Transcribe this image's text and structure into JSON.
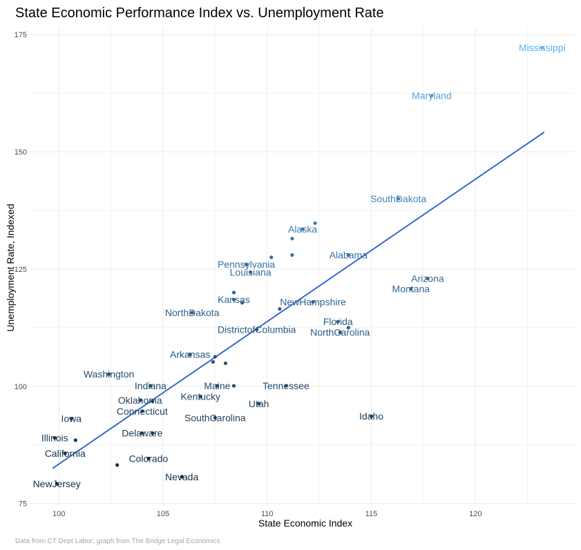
{
  "chart_data": {
    "type": "scatter",
    "title": "State Economic Performance Index vs. Unemployment Rate",
    "xlabel": "State Economic Index",
    "ylabel": "Unemployment Rate, Indexed",
    "caption": "Data from CT Dept Labor; graph from The Bridge Legal Economics",
    "xlim": [
      98.6,
      124.8
    ],
    "ylim": [
      74.5,
      176.5
    ],
    "x_ticks": [
      100,
      105,
      110,
      115,
      120
    ],
    "x_tick_labels": [
      "100",
      "105",
      "110",
      "115",
      "120"
    ],
    "y_ticks": [
      75,
      100,
      125,
      150,
      175
    ],
    "y_tick_labels": [
      "75",
      "100",
      "125",
      "150",
      "175"
    ],
    "grid": true,
    "legend": "none",
    "color_scale": {
      "low": "#132b43",
      "high": "#56b1f7",
      "variable": "unemployment"
    },
    "trend_line": {
      "color": "#3366cc",
      "x": [
        99.7,
        123.3
      ],
      "y": [
        82.5,
        154.2
      ]
    },
    "points": [
      {
        "label": "Mississippi",
        "x": 123.2,
        "y": 172.2
      },
      {
        "label": "Maryland",
        "x": 117.9,
        "y": 162.0
      },
      {
        "label": "South Dakota",
        "x": 116.3,
        "y": 140.0
      },
      {
        "label": "Alaska",
        "x": 111.7,
        "y": 133.5
      },
      {
        "label": "",
        "x": 112.3,
        "y": 134.8
      },
      {
        "label": "",
        "x": 111.2,
        "y": 131.5
      },
      {
        "label": "",
        "x": 111.2,
        "y": 128.0
      },
      {
        "label": "",
        "x": 110.2,
        "y": 127.5
      },
      {
        "label": "Alabama",
        "x": 113.9,
        "y": 128.0
      },
      {
        "label": "Pennsylvania",
        "x": 109.0,
        "y": 126.0
      },
      {
        "label": "Louisiana",
        "x": 109.2,
        "y": 124.3
      },
      {
        "label": "Arizona",
        "x": 117.7,
        "y": 123.0
      },
      {
        "label": "Montana",
        "x": 116.9,
        "y": 120.8
      },
      {
        "label": "",
        "x": 108.4,
        "y": 120.0
      },
      {
        "label": "Kansas",
        "x": 108.4,
        "y": 118.5
      },
      {
        "label": "",
        "x": 108.8,
        "y": 117.8
      },
      {
        "label": "New Hampshire",
        "x": 112.2,
        "y": 118.0
      },
      {
        "label": "",
        "x": 110.6,
        "y": 116.5
      },
      {
        "label": "North Dakota",
        "x": 106.4,
        "y": 115.7
      },
      {
        "label": "Florida",
        "x": 113.4,
        "y": 113.8
      },
      {
        "label": "",
        "x": 113.9,
        "y": 112.5
      },
      {
        "label": "North Carolina",
        "x": 113.5,
        "y": 111.5
      },
      {
        "label": "District of Columbia",
        "x": 109.5,
        "y": 112.1
      },
      {
        "label": "Arkansas",
        "x": 106.3,
        "y": 106.8
      },
      {
        "label": "",
        "x": 107.5,
        "y": 106.3
      },
      {
        "label": "",
        "x": 107.4,
        "y": 105.2
      },
      {
        "label": "",
        "x": 108.0,
        "y": 104.9
      },
      {
        "label": "Washington",
        "x": 102.4,
        "y": 102.6
      },
      {
        "label": "Indiana",
        "x": 104.4,
        "y": 100.1
      },
      {
        "label": "Maine",
        "x": 107.6,
        "y": 100.1
      },
      {
        "label": "",
        "x": 108.4,
        "y": 100.1
      },
      {
        "label": "Tennessee",
        "x": 110.9,
        "y": 100.1
      },
      {
        "label": "Kentucky",
        "x": 106.8,
        "y": 97.8
      },
      {
        "label": "Oklahoma",
        "x": 103.9,
        "y": 97.0
      },
      {
        "label": "",
        "x": 104.5,
        "y": 96.8
      },
      {
        "label": "Utah",
        "x": 109.6,
        "y": 96.3
      },
      {
        "label": "Connecticut",
        "x": 104.0,
        "y": 94.7
      },
      {
        "label": "South Carolina",
        "x": 107.5,
        "y": 93.3
      },
      {
        "label": "Idaho",
        "x": 115.0,
        "y": 93.6
      },
      {
        "label": "Iowa",
        "x": 100.6,
        "y": 93.1
      },
      {
        "label": "Delaware",
        "x": 104.0,
        "y": 90.0
      },
      {
        "label": "",
        "x": 104.5,
        "y": 90.0
      },
      {
        "label": "Illinois",
        "x": 99.8,
        "y": 89.0
      },
      {
        "label": "",
        "x": 100.8,
        "y": 88.5
      },
      {
        "label": "California",
        "x": 100.3,
        "y": 85.7
      },
      {
        "label": "Colorado",
        "x": 104.3,
        "y": 84.6
      },
      {
        "label": "",
        "x": 102.8,
        "y": 83.2
      },
      {
        "label": "Nevada",
        "x": 105.9,
        "y": 80.7
      },
      {
        "label": "New Jersey",
        "x": 99.9,
        "y": 79.2
      }
    ]
  }
}
